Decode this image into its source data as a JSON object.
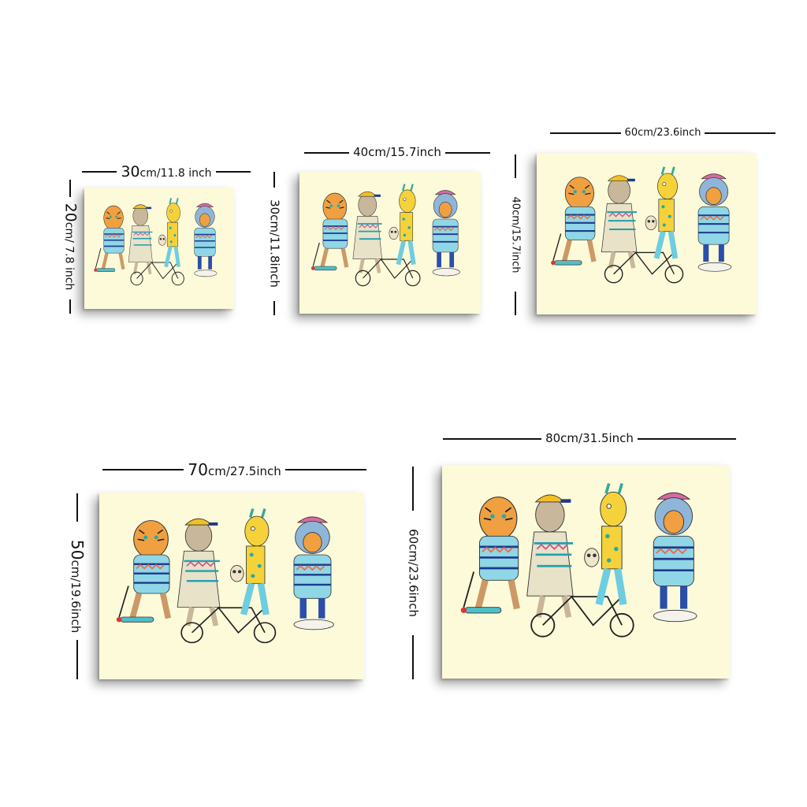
{
  "palette": {
    "canvas_background": "#fcfad9",
    "dimension_line": "#111111"
  },
  "artwork_subject": [
    "tiger-in-sweater",
    "sloth-in-cap",
    "giraffe-in-sweater",
    "owl",
    "bear-in-beanie",
    "kick-scooter",
    "tandem-bicycle",
    "skateboard"
  ],
  "sizes": [
    {
      "width_label": {
        "cm": "30",
        "inch": "cm/11.8 inch"
      },
      "height_label": {
        "cm": "20",
        "inch": "cm/ 7.8 inch"
      }
    },
    {
      "width_label": {
        "cm": "",
        "inch": "40cm/15.7inch"
      },
      "height_label": {
        "cm": "",
        "inch": "30cm/11.8inch"
      }
    },
    {
      "width_label": {
        "cm": "",
        "inch": "60cm/23.6inch"
      },
      "height_label": {
        "cm": "",
        "inch": "40cm/15.7inch"
      }
    },
    {
      "width_label": {
        "cm": "70",
        "inch": "cm/27.5inch"
      },
      "height_label": {
        "cm": "50",
        "inch": "cm/19.6inch"
      }
    },
    {
      "width_label": {
        "cm": "",
        "inch": "80cm/31.5inch"
      },
      "height_label": {
        "cm": "",
        "inch": "60cm/23.6inch"
      }
    }
  ]
}
